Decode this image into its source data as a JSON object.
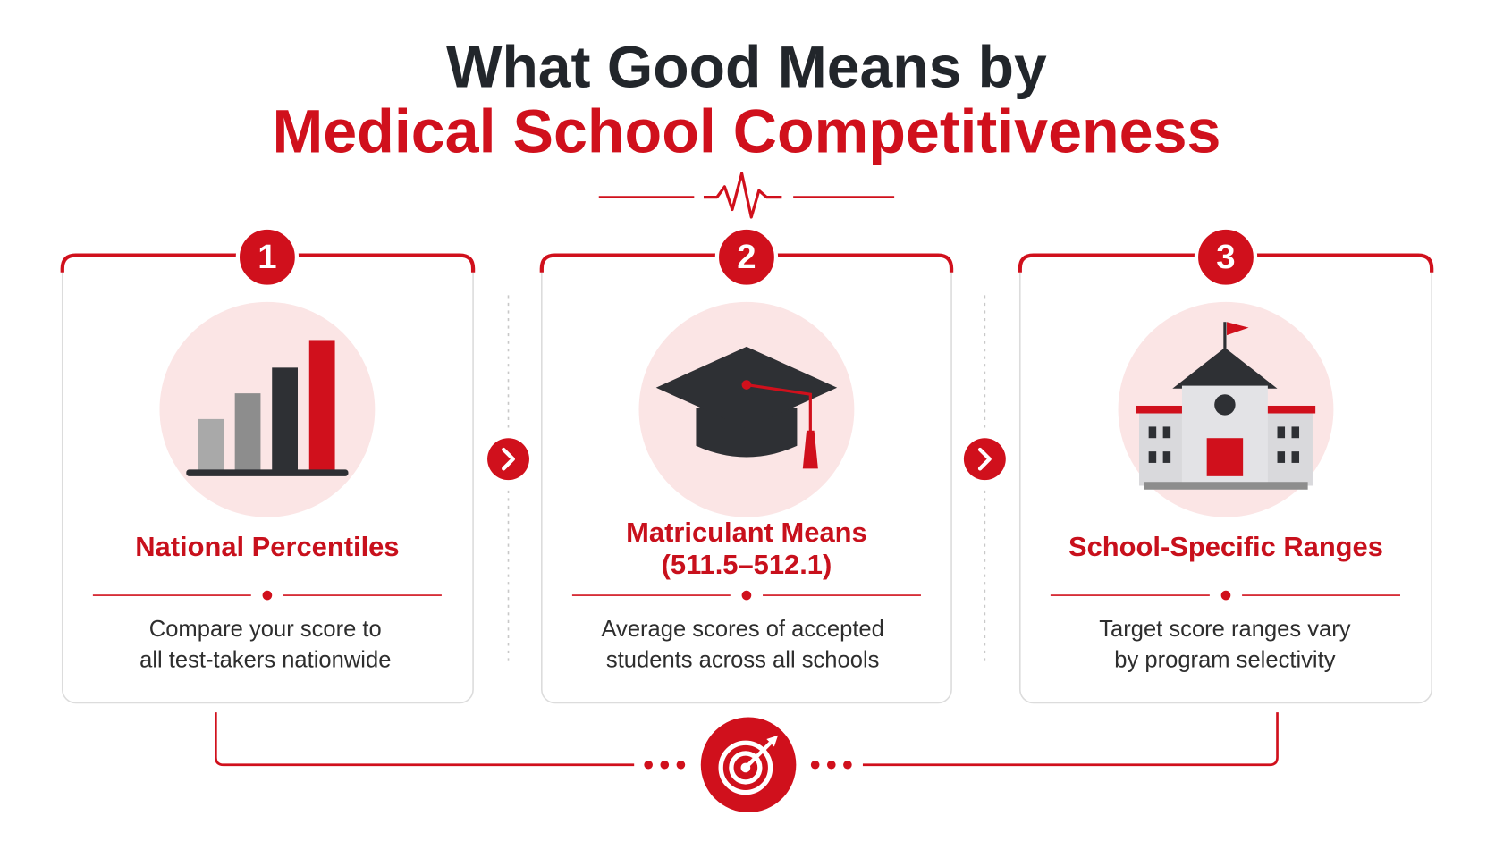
{
  "header": {
    "title_line1": "What Good Means by",
    "title_line2": "Medical School Competitiveness"
  },
  "cards": [
    {
      "number": "1",
      "title": [
        "National Percentiles"
      ],
      "description": [
        "Compare your score to",
        "all test-takers nationwide"
      ]
    },
    {
      "number": "2",
      "title": [
        "Matriculant Means",
        "(511.5–512.1)"
      ],
      "description": [
        "Average scores of accepted",
        "students across all schools"
      ]
    },
    {
      "number": "3",
      "title": [
        "School-Specific Ranges"
      ],
      "description": [
        "Target score ranges vary",
        "by program selectivity"
      ]
    }
  ]
}
